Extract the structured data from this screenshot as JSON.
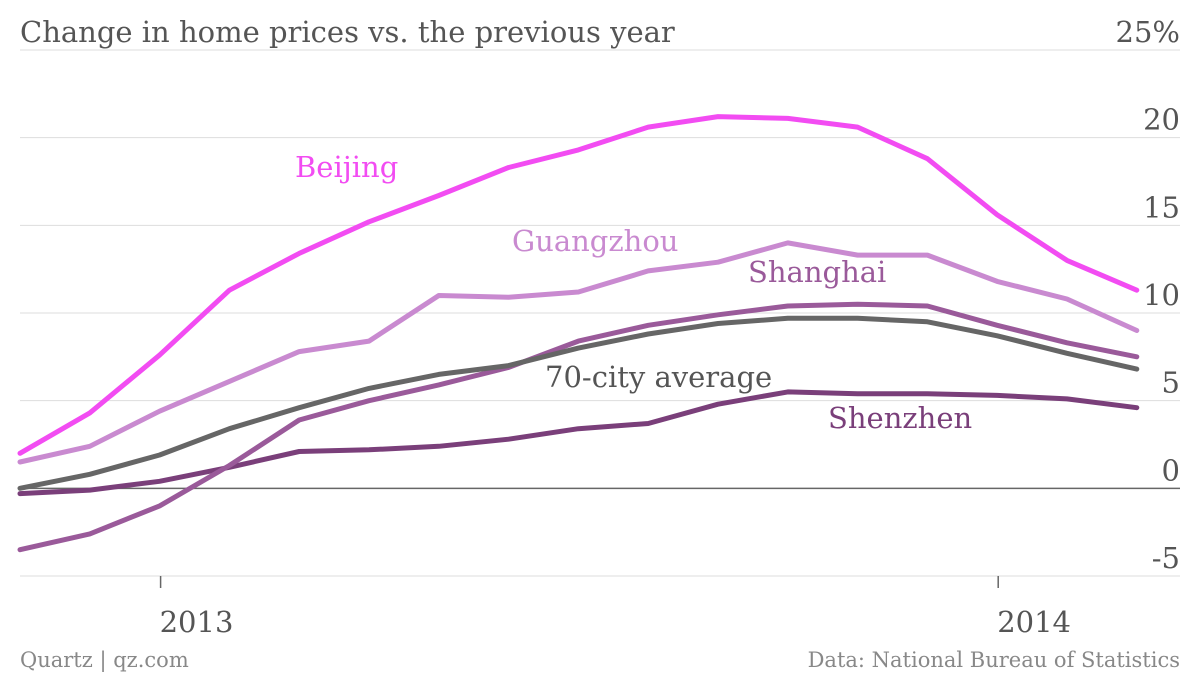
{
  "chart_data": {
    "type": "line",
    "title": "Change in home prices vs. the previous year",
    "xlabel": "",
    "ylabel": "",
    "ylim": [
      -5,
      25
    ],
    "y_ticks": [
      "25%",
      "20",
      "15",
      "10",
      "5",
      "0",
      "-5"
    ],
    "x_tick_labels": [
      "2013",
      "2014"
    ],
    "grid": true,
    "legend": "labels placed directly on lines",
    "x": [
      "2012-11",
      "2012-12",
      "2013-01",
      "2013-02",
      "2013-03",
      "2013-04",
      "2013-05",
      "2013-06",
      "2013-07",
      "2013-08",
      "2013-09",
      "2013-10",
      "2013-11",
      "2013-12",
      "2014-01",
      "2014-02",
      "2014-03",
      "2014-04"
    ],
    "series": [
      {
        "name": "Beijing",
        "color": "#f24cf2",
        "values": [
          2.0,
          4.3,
          7.6,
          11.3,
          13.4,
          15.2,
          16.7,
          18.3,
          19.3,
          20.6,
          21.2,
          21.1,
          20.6,
          18.8,
          15.6,
          13.0,
          11.3,
          null
        ]
      },
      {
        "name": "Guangzhou",
        "color": "#c98ad0",
        "values": [
          1.5,
          2.4,
          4.4,
          6.1,
          7.8,
          8.4,
          11.0,
          10.9,
          11.2,
          12.4,
          12.9,
          14.0,
          13.3,
          13.3,
          11.8,
          10.8,
          9.0,
          null
        ]
      },
      {
        "name": "Shanghai",
        "color": "#9a5a9a",
        "values": [
          -3.5,
          -2.6,
          -1.0,
          1.3,
          3.9,
          5.0,
          5.9,
          6.9,
          8.4,
          9.3,
          9.9,
          10.4,
          10.5,
          10.4,
          9.3,
          8.3,
          7.5,
          null
        ]
      },
      {
        "name": "70-city average",
        "color": "#666666",
        "values": [
          0.0,
          0.8,
          1.9,
          3.4,
          4.6,
          5.7,
          6.5,
          7.0,
          8.0,
          8.8,
          9.4,
          9.7,
          9.7,
          9.5,
          8.7,
          7.7,
          6.8,
          null
        ]
      },
      {
        "name": "Shenzhen",
        "color": "#7a3f7a",
        "values": [
          -0.3,
          -0.1,
          0.4,
          1.2,
          2.1,
          2.2,
          2.4,
          2.8,
          3.4,
          3.7,
          4.8,
          5.5,
          5.4,
          5.4,
          5.3,
          5.1,
          4.6,
          null
        ]
      }
    ]
  },
  "footer": {
    "left": "Quartz | qz.com",
    "right": "Data: National Bureau of Statistics"
  }
}
